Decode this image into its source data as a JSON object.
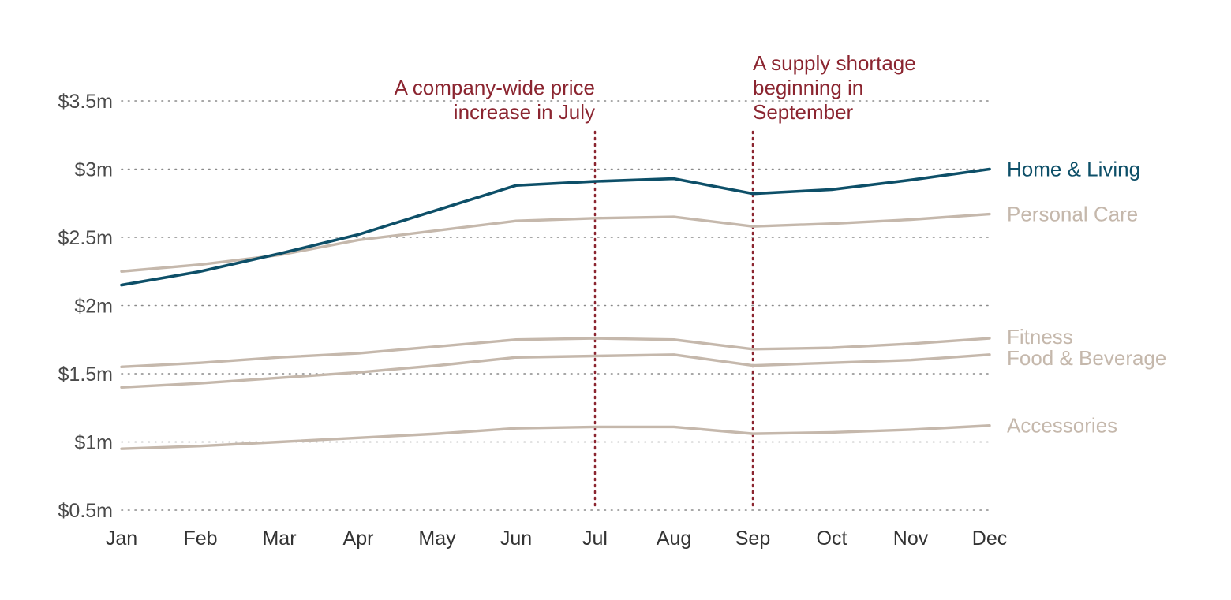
{
  "chart_data": {
    "type": "line",
    "x": [
      "Jan",
      "Feb",
      "Mar",
      "Apr",
      "May",
      "Jun",
      "Jul",
      "Aug",
      "Sep",
      "Oct",
      "Nov",
      "Dec"
    ],
    "y_ticks": [
      0.5,
      1,
      1.5,
      2,
      2.5,
      3,
      3.5
    ],
    "y_tick_labels": [
      "$0.5m",
      "$1m",
      "$1.5m",
      "$2m",
      "$2.5m",
      "$3m",
      "$3.5m"
    ],
    "ylim": [
      0.5,
      3.5
    ],
    "grid": true,
    "legend": "direct labels at line ends (right)",
    "highlight_color": "#0d4f68",
    "muted_color": "#c5b8ac",
    "annotation_color": "#8b2530",
    "series": [
      {
        "name": "Home & Living",
        "highlight": true,
        "values": [
          2.15,
          2.25,
          2.38,
          2.52,
          2.7,
          2.88,
          2.91,
          2.93,
          2.82,
          2.85,
          2.92,
          3.0
        ]
      },
      {
        "name": "Personal Care",
        "highlight": false,
        "values": [
          2.25,
          2.3,
          2.37,
          2.48,
          2.55,
          2.62,
          2.64,
          2.65,
          2.58,
          2.6,
          2.63,
          2.67
        ]
      },
      {
        "name": "Fitness",
        "highlight": false,
        "values": [
          1.55,
          1.58,
          1.62,
          1.65,
          1.7,
          1.75,
          1.76,
          1.75,
          1.68,
          1.69,
          1.72,
          1.76
        ]
      },
      {
        "name": "Food & Beverage",
        "highlight": false,
        "values": [
          1.4,
          1.43,
          1.47,
          1.51,
          1.56,
          1.62,
          1.63,
          1.64,
          1.56,
          1.58,
          1.6,
          1.64
        ]
      },
      {
        "name": "Accessories",
        "highlight": false,
        "values": [
          0.95,
          0.97,
          1.0,
          1.03,
          1.06,
          1.1,
          1.11,
          1.11,
          1.06,
          1.07,
          1.09,
          1.12
        ]
      }
    ],
    "annotations": [
      {
        "x": "Jul",
        "align": "right",
        "lines": [
          "A company-wide price",
          "increase in July"
        ]
      },
      {
        "x": "Sep",
        "align": "left",
        "lines": [
          "A supply shortage",
          "beginning in",
          "September"
        ]
      }
    ]
  }
}
